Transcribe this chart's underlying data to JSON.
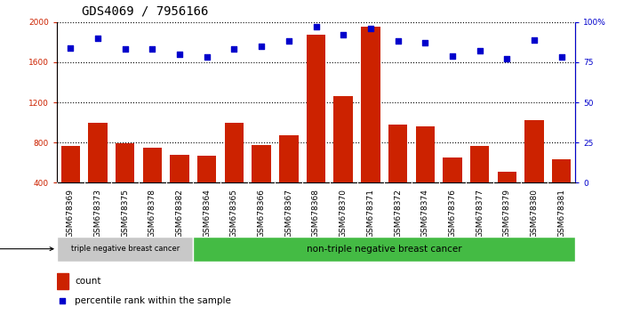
{
  "title": "GDS4069 / 7956166",
  "samples": [
    "GSM678369",
    "GSM678373",
    "GSM678375",
    "GSM678378",
    "GSM678382",
    "GSM678364",
    "GSM678365",
    "GSM678366",
    "GSM678367",
    "GSM678368",
    "GSM678370",
    "GSM678371",
    "GSM678372",
    "GSM678374",
    "GSM678376",
    "GSM678377",
    "GSM678379",
    "GSM678380",
    "GSM678381"
  ],
  "counts": [
    770,
    1000,
    790,
    750,
    680,
    670,
    1000,
    775,
    870,
    1870,
    1260,
    1950,
    980,
    960,
    650,
    770,
    510,
    1020,
    630
  ],
  "percentiles": [
    84,
    90,
    83,
    83,
    80,
    78,
    83,
    85,
    88,
    97,
    92,
    96,
    88,
    87,
    79,
    82,
    77,
    89,
    78
  ],
  "group1_count": 5,
  "group1_label": "triple negative breast cancer",
  "group2_label": "non-triple negative breast cancer",
  "ylim_left": [
    400,
    2000
  ],
  "ylim_right": [
    0,
    100
  ],
  "yticks_left": [
    400,
    800,
    1200,
    1600,
    2000
  ],
  "yticks_right": [
    0,
    25,
    50,
    75,
    100
  ],
  "bar_color": "#cc2200",
  "dot_color": "#0000cc",
  "sample_bg_color": "#d8d8d8",
  "group1_bg": "#c8c8c8",
  "group2_bg": "#44bb44",
  "legend_count_label": "count",
  "legend_pct_label": "percentile rank within the sample",
  "title_fontsize": 10,
  "tick_fontsize": 6.5,
  "label_fontsize": 7
}
